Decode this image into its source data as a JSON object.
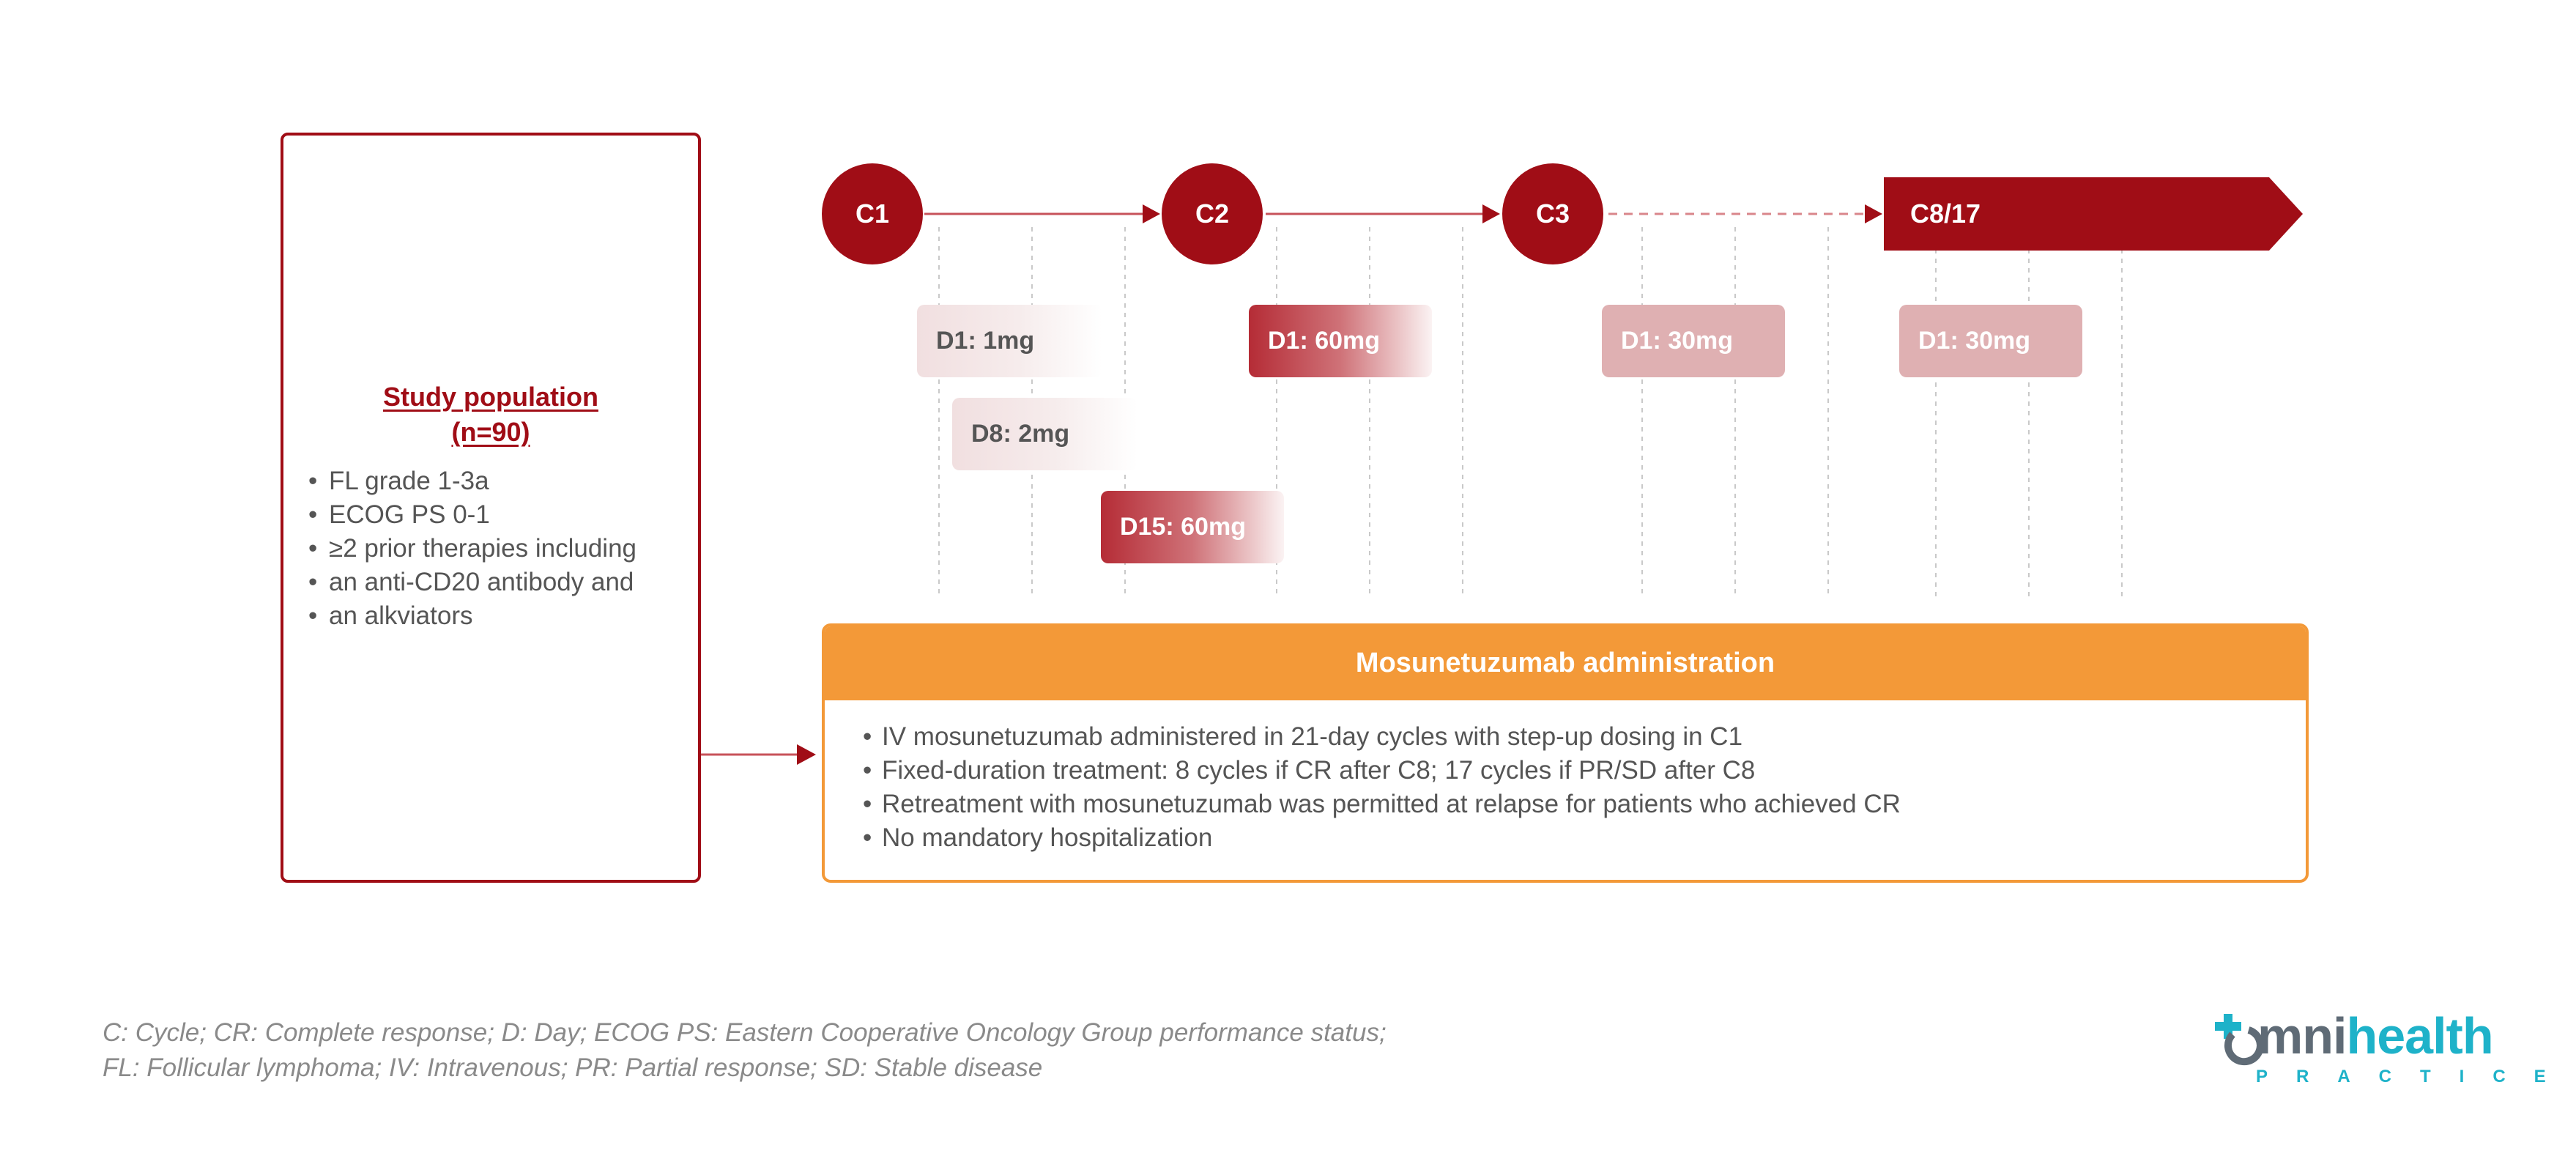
{
  "colors": {
    "accent_red": "#a00d16",
    "accent_orange": "#f39938",
    "text_gray": "#555555",
    "logo_teal": "#1eb2c9"
  },
  "population": {
    "title_line1": "Study population",
    "title_line2": "(n=90)",
    "items": [
      "FL grade 1-3a",
      "ECOG PS 0-1",
      "≥2 prior therapies including",
      "an anti-CD20 antibody and",
      "an alkviators"
    ]
  },
  "cycles": [
    "C1",
    "C2",
    "C3",
    "C8/17"
  ],
  "doses": {
    "c1_d1": "D1: 1mg",
    "c1_d8": "D8: 2mg",
    "c1_d15": "D15: 60mg",
    "c2_d1": "D1: 60mg",
    "c3_d1": "D1: 30mg",
    "c8_d1": "D1: 30mg"
  },
  "administration": {
    "title": "Mosunetuzumab administration",
    "items": [
      "IV mosunetuzumab administered in 21-day cycles with step-up dosing in C1",
      "Fixed-duration treatment: 8 cycles if CR after C8; 17 cycles if PR/SD after C8",
      "Retreatment with mosunetuzumab was permitted at relapse for patients who achieved CR",
      "No mandatory hospitalization"
    ]
  },
  "footnote": {
    "line1": "C: Cycle; CR: Complete response; D: Day; ECOG PS: Eastern Cooperative Oncology Group performance status;",
    "line2": "FL: Follicular lymphoma; IV: Intravenous; PR: Partial response; SD: Stable disease"
  },
  "logo": {
    "word_a": "mni",
    "word_b": "health",
    "sub": "PRACTICE"
  }
}
